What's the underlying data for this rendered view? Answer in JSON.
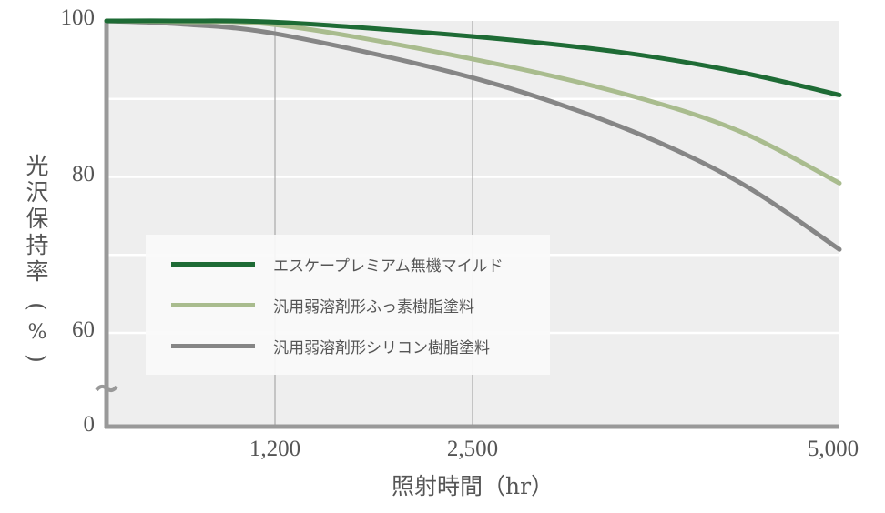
{
  "chart_data": {
    "type": "line",
    "title": "",
    "xlabel": "照射時間（hr）",
    "ylabel": "光沢保持率（%）",
    "x_ticks": [
      "1,200",
      "2,500",
      "5,000"
    ],
    "y_ticks": [
      "0",
      "60",
      "80",
      "100"
    ],
    "xlim": [
      0,
      5000
    ],
    "ylim": [
      0,
      100
    ],
    "y_axis_break": true,
    "grid": true,
    "legend_position": "center-left inside",
    "x": [
      0,
      500,
      1200,
      2500,
      3500,
      4300,
      5000
    ],
    "series": [
      {
        "name": "エスケープレミアム無機マイルド",
        "color": "#1e6b35",
        "values": [
          100,
          100,
          99.8,
          98.0,
          96.0,
          93.5,
          90.5
        ]
      },
      {
        "name": "汎用弱溶剤形ふっ素樹脂塗料",
        "color": "#a9bc8e",
        "values": [
          100,
          99.9,
          99.4,
          95.1,
          90.8,
          86.0,
          79.2
        ]
      },
      {
        "name": "汎用弱溶剤形シリコン樹脂塗料",
        "color": "#868686",
        "values": [
          100,
          99.6,
          98.2,
          92.7,
          86.5,
          79.5,
          70.7
        ]
      }
    ]
  },
  "axes": {
    "ylabel_chars": [
      "光",
      "沢",
      "保",
      "持",
      "率"
    ],
    "ylabel_unit": "（%）",
    "xlabel": "照射時間（hr）",
    "y_ticks": {
      "t100": "100",
      "t80": "80",
      "t60": "60",
      "t0": "0"
    },
    "x_ticks": {
      "t1200": "1,200",
      "t2500": "2,500",
      "t5000": "5,000"
    }
  },
  "legend": {
    "items": [
      {
        "label": "エスケープレミアム無機マイルド",
        "color": "#1e6b35"
      },
      {
        "label": "汎用弱溶剤形ふっ素樹脂塗料",
        "color": "#a9bc8e"
      },
      {
        "label": "汎用弱溶剤形シリコン樹脂塗料",
        "color": "#868686"
      }
    ]
  }
}
